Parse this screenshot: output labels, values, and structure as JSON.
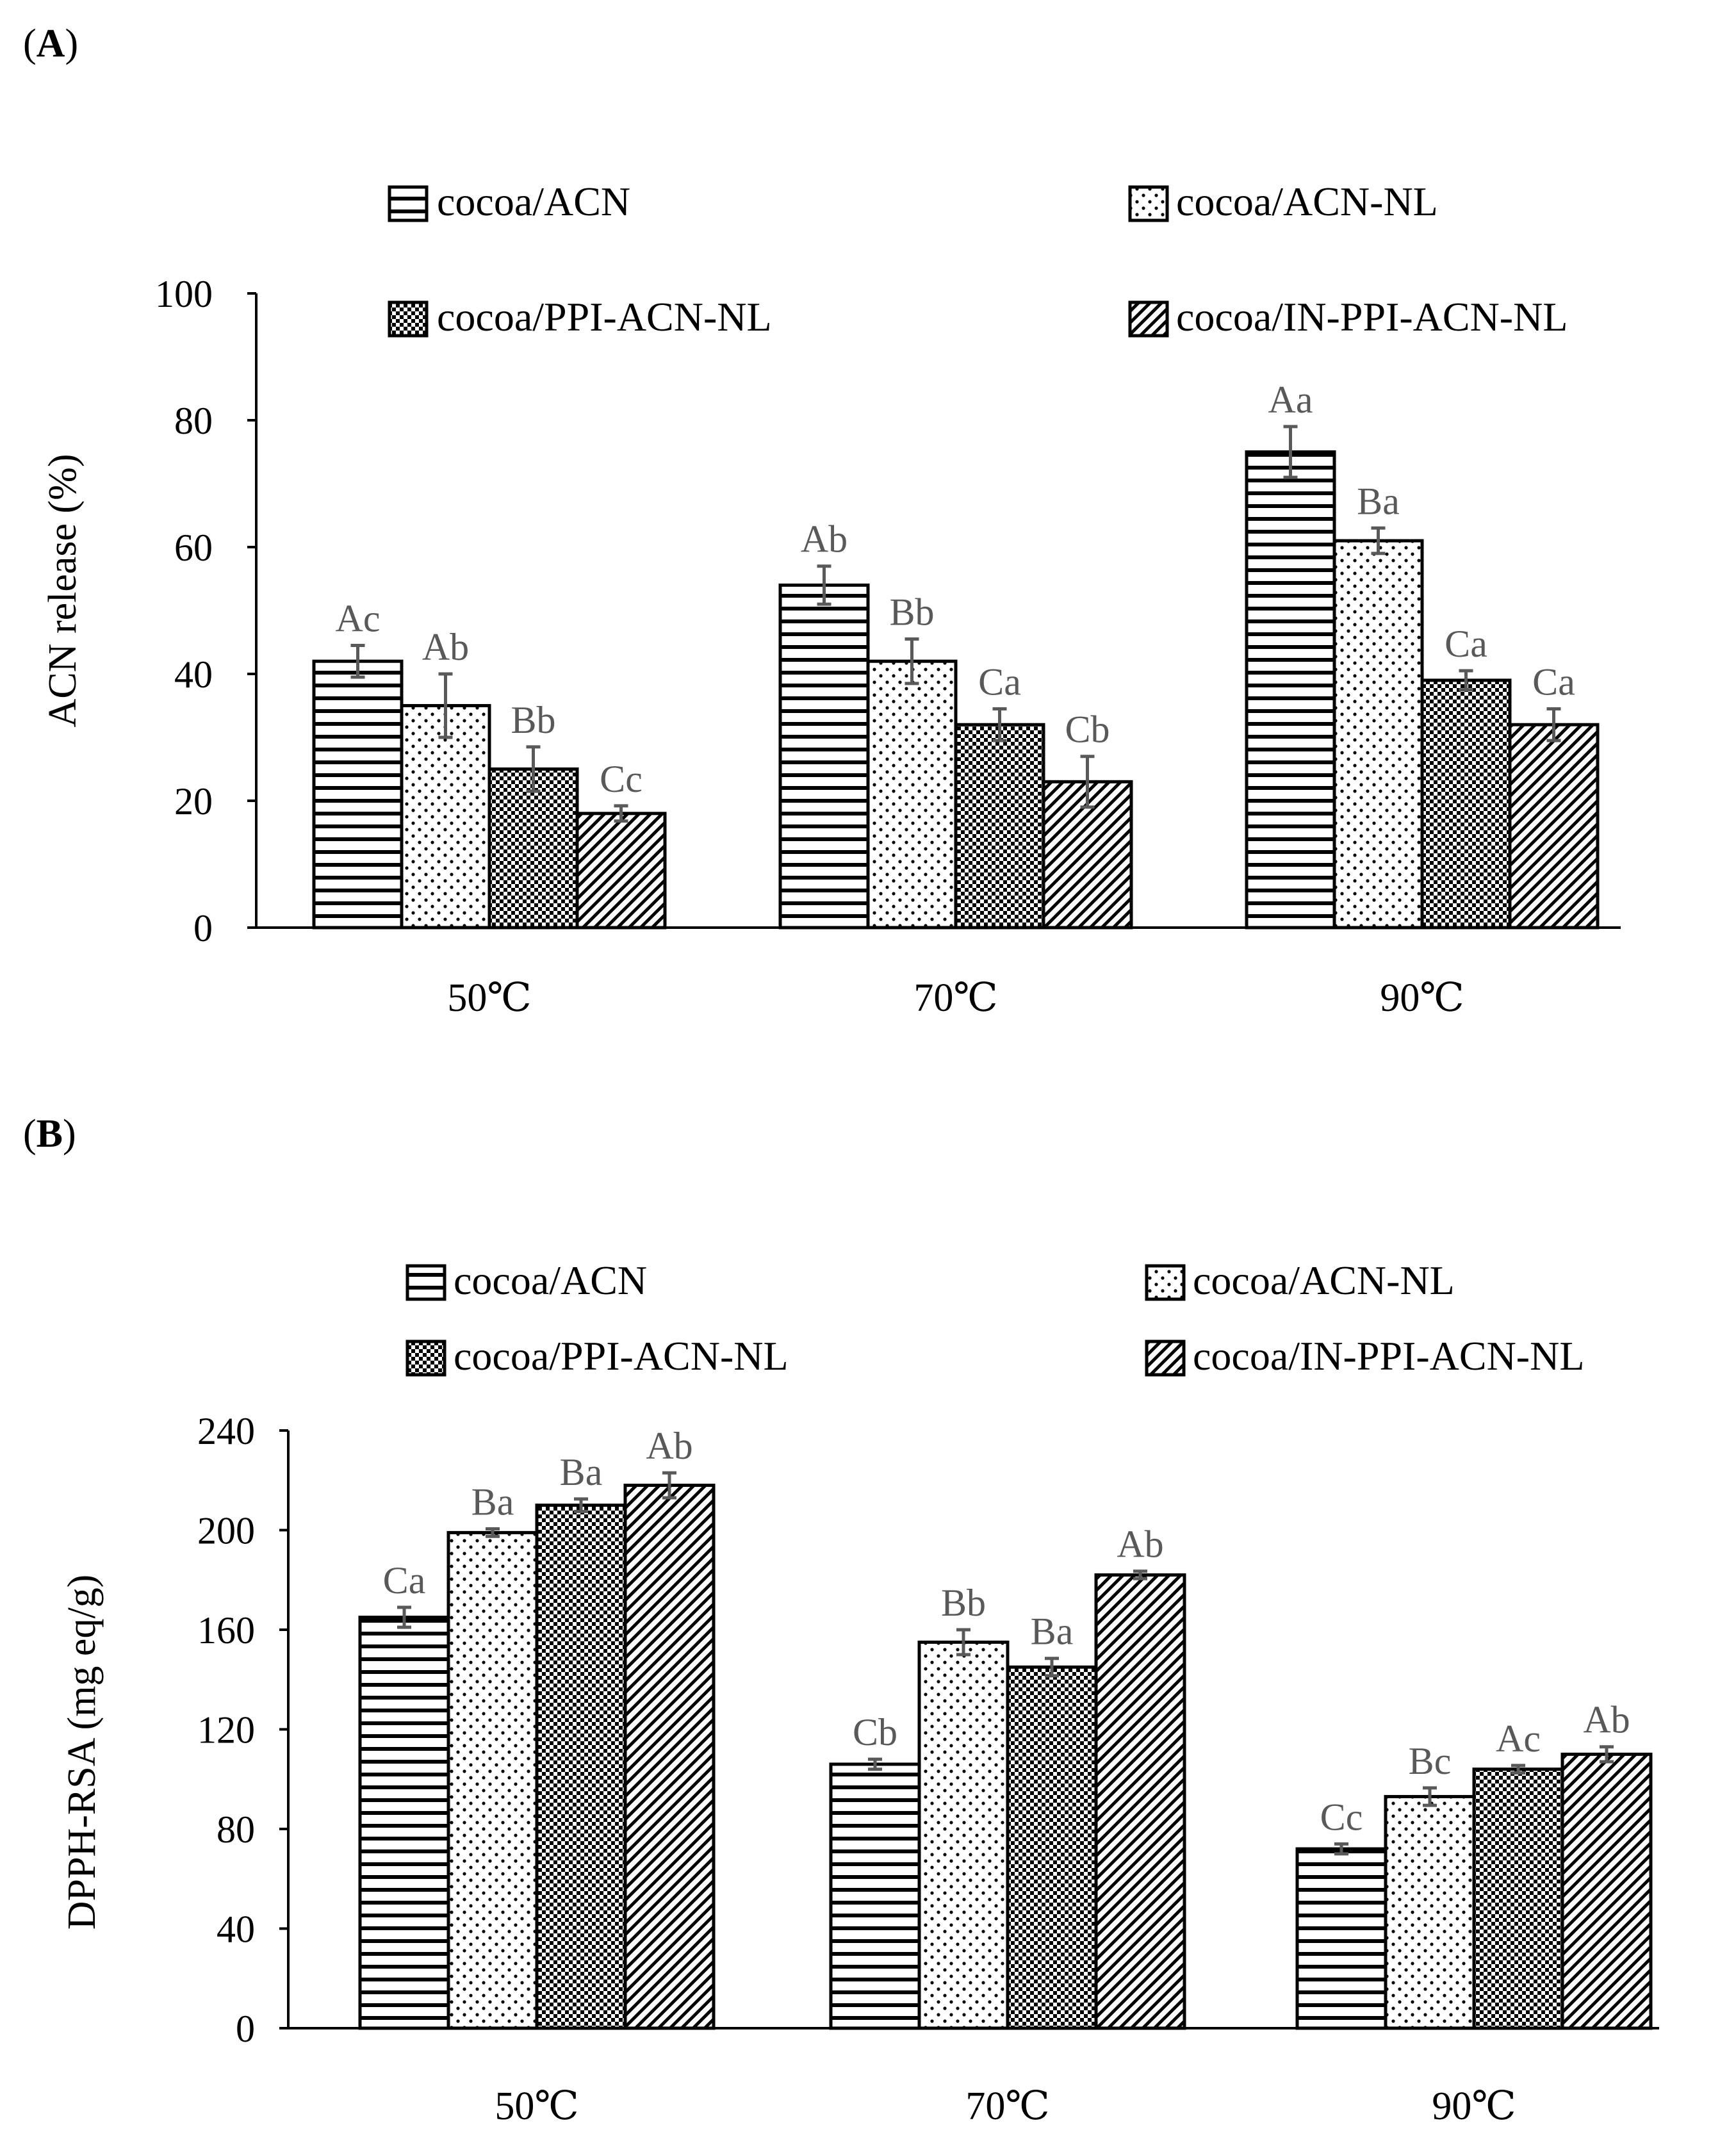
{
  "figure": {
    "category_unit": "℃",
    "legend_labels": [
      "cocoa/ACN",
      "cocoa/ACN-NL",
      "cocoa/PPI-ACN-NL",
      "cocoa/IN-PPI-ACN-NL"
    ],
    "panel_a": {
      "prefix": "(",
      "letter": "A",
      "suffix": ")"
    },
    "panel_b": {
      "prefix": "(",
      "letter": "B",
      "suffix": ")"
    }
  },
  "colors": {
    "bar_fill": "#ffffff",
    "bar_stroke": "#000000",
    "error_bar": "#595959",
    "significance_text": "#595959"
  },
  "chart_data": [
    {
      "id": "A",
      "type": "bar",
      "title": "",
      "xlabel": "",
      "ylabel": "ACN  release (%)",
      "ylim": [
        0,
        100
      ],
      "yticks": [
        0,
        20,
        40,
        60,
        80,
        100
      ],
      "grid": false,
      "legend_position": "top",
      "categories": [
        "50",
        "70",
        "90"
      ],
      "series": [
        {
          "name": "cocoa/ACN",
          "pattern": "horizontal",
          "values": [
            42,
            54,
            75
          ],
          "errors": [
            2.5,
            3,
            4
          ],
          "labels": [
            "Ac",
            "Ab",
            "Aa"
          ]
        },
        {
          "name": "cocoa/ACN-NL",
          "pattern": "dots",
          "values": [
            35,
            42,
            61
          ],
          "errors": [
            5,
            3.5,
            2
          ],
          "labels": [
            "Ab",
            "Bb",
            "Ba"
          ]
        },
        {
          "name": "cocoa/PPI-ACN-NL",
          "pattern": "checker",
          "values": [
            25,
            32,
            39
          ],
          "errors": [
            3.5,
            2.5,
            1.5
          ],
          "labels": [
            "Bb",
            "Ca",
            "Ca"
          ]
        },
        {
          "name": "cocoa/IN-PPI-ACN-NL",
          "pattern": "diagonal",
          "values": [
            18,
            23,
            32
          ],
          "errors": [
            1.2,
            4,
            2.5
          ],
          "labels": [
            "Cc",
            "Cb",
            "Ca"
          ]
        }
      ]
    },
    {
      "id": "B",
      "type": "bar",
      "title": "",
      "xlabel": "",
      "ylabel": "DPPH-RSA (mg eq/g)",
      "ylim": [
        0,
        240
      ],
      "yticks": [
        0,
        40,
        80,
        120,
        160,
        200,
        240
      ],
      "grid": false,
      "legend_position": "top",
      "categories": [
        "50",
        "70",
        "90"
      ],
      "series": [
        {
          "name": "cocoa/ACN",
          "pattern": "horizontal",
          "values": [
            165,
            106,
            72
          ],
          "errors": [
            4,
            2,
            2
          ],
          "labels": [
            "Ca",
            "Cb",
            "Cc"
          ]
        },
        {
          "name": "cocoa/ACN-NL",
          "pattern": "dots",
          "values": [
            199,
            155,
            93
          ],
          "errors": [
            1.5,
            5,
            3.5
          ],
          "labels": [
            "Ba",
            "Bb",
            "Bc"
          ]
        },
        {
          "name": "cocoa/PPI-ACN-NL",
          "pattern": "checker",
          "values": [
            210,
            145,
            104
          ],
          "errors": [
            2.5,
            3.5,
            1.5
          ],
          "labels": [
            "Ba",
            "Ba",
            "Ac"
          ]
        },
        {
          "name": "cocoa/IN-PPI-ACN-NL",
          "pattern": "diagonal",
          "values": [
            218,
            182,
            110
          ],
          "errors": [
            5,
            1.5,
            3
          ],
          "labels": [
            "Ab",
            "Ab",
            "Ab"
          ]
        }
      ]
    }
  ]
}
